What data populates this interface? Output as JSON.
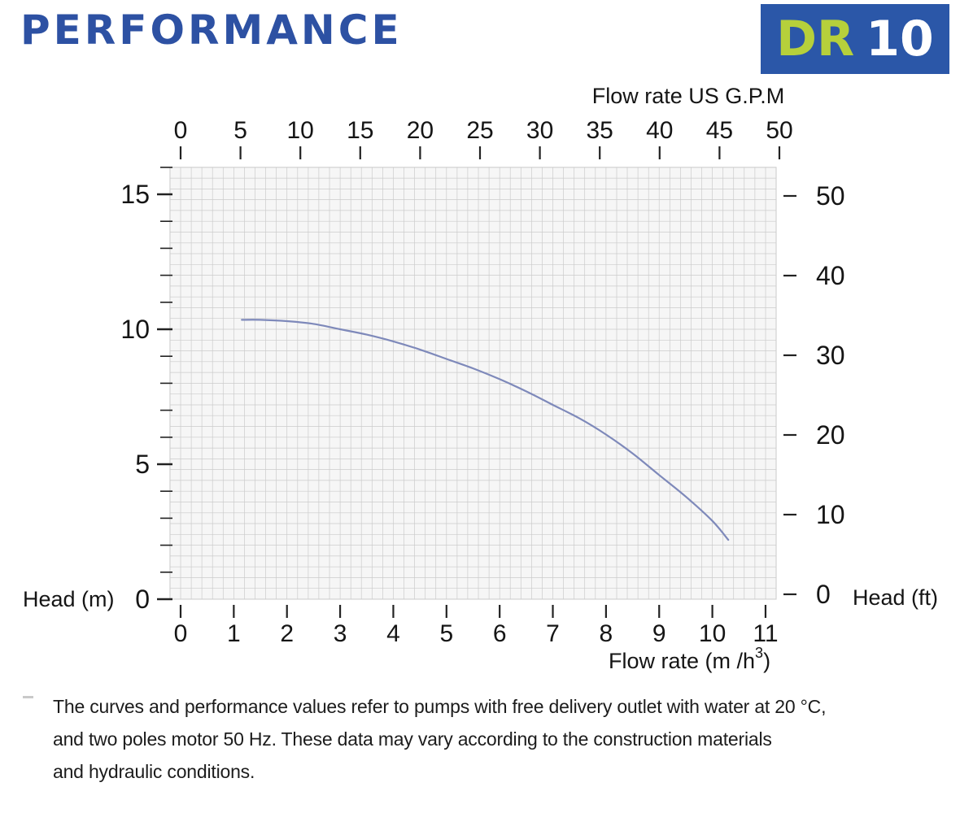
{
  "title": "PERFORMANCE",
  "badge": {
    "series": "DR",
    "model": "10"
  },
  "colors": {
    "title": "#2d51a3",
    "badge_bg": "#2b57a8",
    "badge_series": "#b6d03b",
    "badge_model": "#ffffff",
    "grid_bg": "#f6f6f6",
    "grid_line": "#cbcbcb",
    "tick": "#222222",
    "curve": "#7e89ba",
    "text": "#151515"
  },
  "chart_data": {
    "type": "line",
    "title": "DR 10 pump performance curve",
    "grid": true,
    "legend": "none",
    "axes": {
      "top": {
        "label": "Flow rate US  G.P.M",
        "unit": "US GPM",
        "ticks": [
          0,
          5,
          10,
          15,
          20,
          25,
          30,
          35,
          40,
          45,
          50
        ],
        "range": [
          0,
          50
        ]
      },
      "bottom": {
        "label_pre": "Flow rate  (m /h",
        "label_sup": "3",
        "label_post": ")",
        "unit": "m3/h",
        "ticks": [
          0,
          1,
          2,
          3,
          4,
          5,
          6,
          7,
          8,
          9,
          10,
          11
        ],
        "range": [
          0,
          11
        ]
      },
      "left": {
        "label": "Head (m)",
        "unit": "m",
        "ticks": [
          0,
          5,
          10,
          15
        ],
        "minor_step": 1,
        "range": [
          0,
          16
        ]
      },
      "right": {
        "label": "Head (ft)",
        "unit": "ft",
        "ticks": [
          0,
          10,
          20,
          30,
          40,
          50
        ],
        "range": [
          0,
          50
        ]
      }
    },
    "series": [
      {
        "name": "DR 10",
        "x_unit": "m3/h",
        "y_unit": "m",
        "points": [
          [
            1.15,
            10.35
          ],
          [
            1.5,
            10.35
          ],
          [
            2,
            10.3
          ],
          [
            2.5,
            10.2
          ],
          [
            3,
            10.0
          ],
          [
            3.5,
            9.8
          ],
          [
            4,
            9.55
          ],
          [
            4.5,
            9.25
          ],
          [
            5,
            8.9
          ],
          [
            5.5,
            8.55
          ],
          [
            6,
            8.15
          ],
          [
            6.5,
            7.7
          ],
          [
            7,
            7.2
          ],
          [
            7.5,
            6.7
          ],
          [
            8,
            6.1
          ],
          [
            8.5,
            5.4
          ],
          [
            9,
            4.6
          ],
          [
            9.5,
            3.8
          ],
          [
            10,
            2.9
          ],
          [
            10.3,
            2.2
          ]
        ]
      }
    ]
  },
  "footnote": {
    "lines": [
      "The curves and performance values refer to pumps with free delivery outlet with water at 20 °C,",
      "and two poles motor 50 Hz. These data may vary according to the construction materials",
      "and hydraulic conditions."
    ]
  }
}
